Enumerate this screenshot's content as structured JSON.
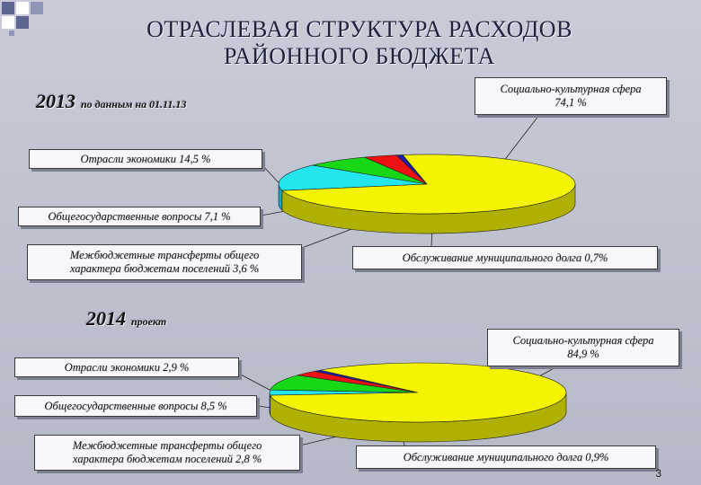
{
  "title_line1": "ОТРАСЛЕВАЯ СТРУКТУРА РАСХОДОВ",
  "title_line2": "РАЙОННОГО БЮДЖЕТА",
  "colors": {
    "social": "#f4f400",
    "economy": "#22e5ee",
    "government": "#16d816",
    "transfers": "#ee1212",
    "debt": "#1c1ca8"
  },
  "chart_data": [
    {
      "type": "pie",
      "year_label": "2013",
      "year_note": "по данным на 01.11.13",
      "series": [
        {
          "label": "Социально-культурная сфера",
          "value": 74.1,
          "display": "Социально-культурная сфера\n74,1 %",
          "color": "#f4f400"
        },
        {
          "label": "Отрасли экономики",
          "value": 14.5,
          "display": "Отрасли экономики 14,5 %",
          "color": "#22e5ee"
        },
        {
          "label": "Общегосударственные вопросы",
          "value": 7.1,
          "display": "Общегосударственные вопросы 7,1 %",
          "color": "#16d816"
        },
        {
          "label": "Межбюджетные трансферты общего характера бюджетам поселений",
          "value": 3.6,
          "display": "Межбюджетные трансферты общего\nхарактера бюджетам поселений 3,6 %",
          "color": "#ee1212"
        },
        {
          "label": "Обслуживание муниципального долга",
          "value": 0.7,
          "display": "Обслуживание муниципального долга 0,7%",
          "color": "#1c1ca8"
        }
      ]
    },
    {
      "type": "pie",
      "year_label": "2014",
      "year_note": "проект",
      "series": [
        {
          "label": "Социально-культурная сфера",
          "value": 84.9,
          "display": "Социально-культурная сфера\n84,9 %",
          "color": "#f4f400"
        },
        {
          "label": "Отрасли экономики",
          "value": 2.9,
          "display": "Отрасли экономики 2,9 %",
          "color": "#22e5ee"
        },
        {
          "label": "Общегосударственные вопросы",
          "value": 8.5,
          "display": "Общегосударственные вопросы 8,5 %",
          "color": "#16d816"
        },
        {
          "label": "Межбюджетные трансферты общего характера бюджетам поселений",
          "value": 2.8,
          "display": "Межбюджетные трансферты общего\nхарактера бюджетам поселений 2,8 %",
          "color": "#ee1212"
        },
        {
          "label": "Обслуживание муниципального долга",
          "value": 0.9,
          "display": "Обслуживание муниципального долга 0,9%",
          "color": "#1c1ca8"
        }
      ]
    }
  ],
  "page_number": "3"
}
